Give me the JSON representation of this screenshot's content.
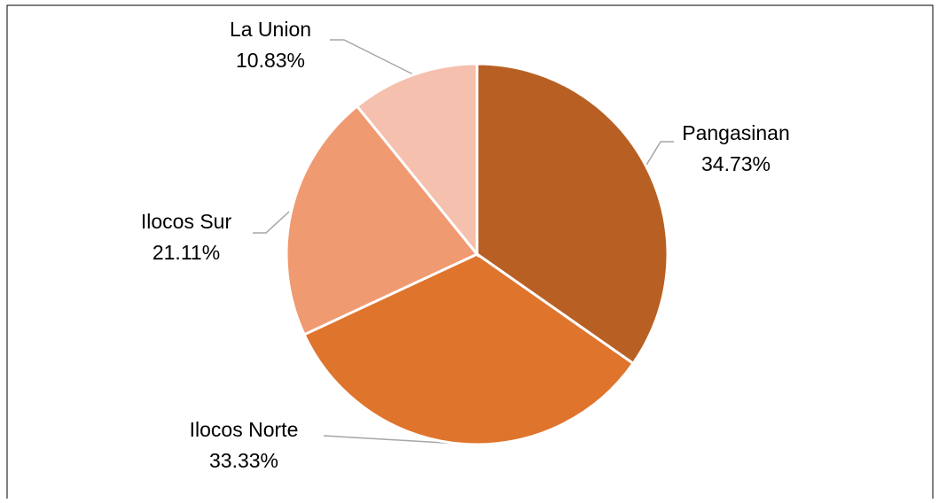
{
  "chart_data": {
    "type": "pie",
    "categories": [
      "Pangasinan",
      "Ilocos Norte",
      "Ilocos Sur",
      "La Union"
    ],
    "values": [
      34.73,
      33.33,
      21.11,
      10.83
    ],
    "value_labels": [
      "34.73%",
      "33.33%",
      "21.11%",
      "10.83%"
    ],
    "colors": [
      "#b86024",
      "#df742d",
      "#f09a72",
      "#f5c0ae"
    ]
  }
}
